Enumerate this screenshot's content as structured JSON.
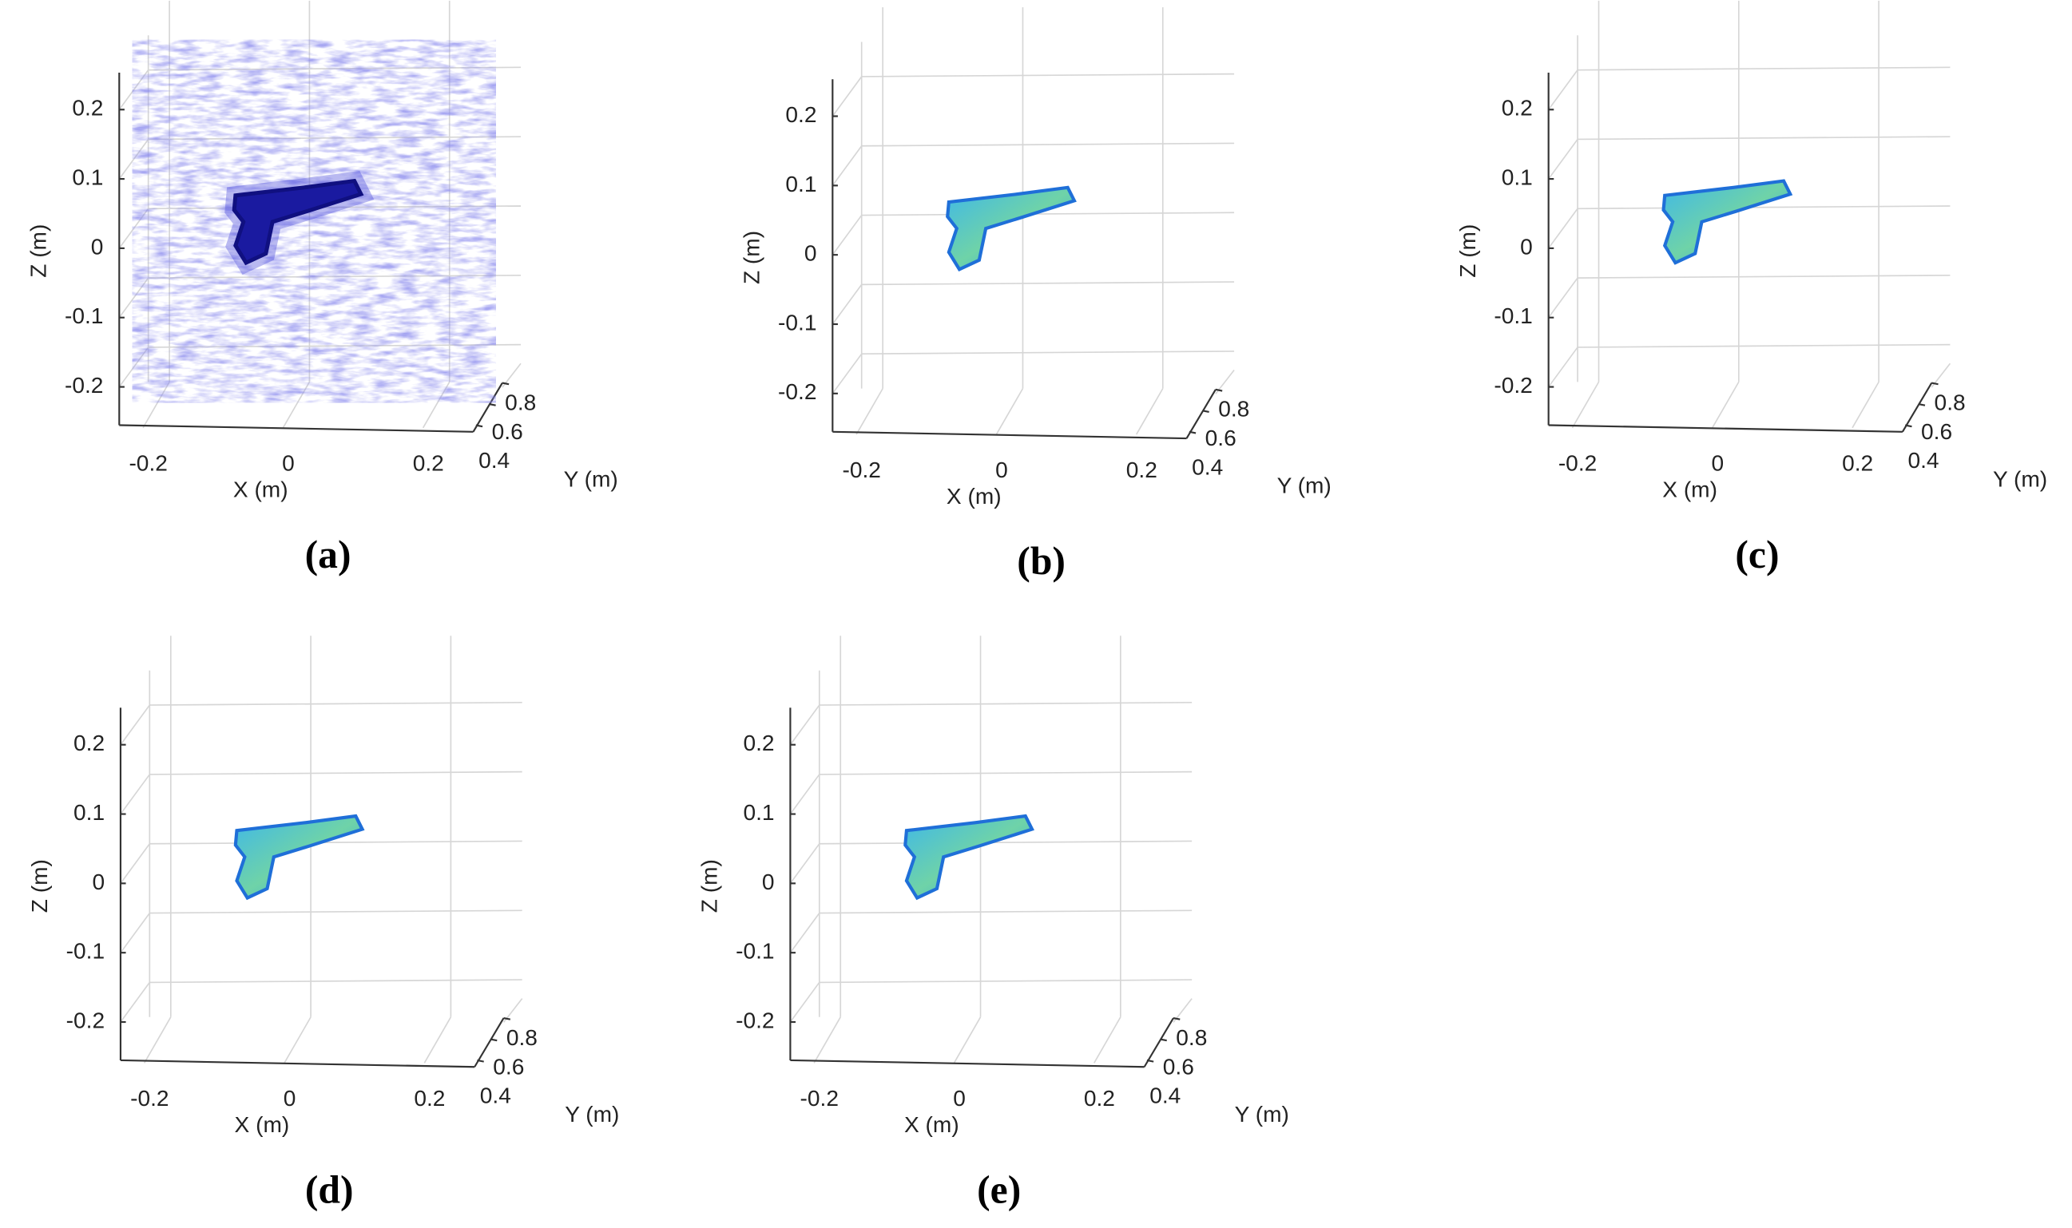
{
  "panels": [
    {
      "caption": "(a)",
      "x_label": "X (m)",
      "y_label": "Y (m)",
      "z_label": "Z (m)",
      "xticks": [
        -0.2,
        0,
        0.2
      ],
      "yticks": [
        0.4,
        0.6,
        0.8
      ],
      "zticks": [
        -0.2,
        -0.1,
        0,
        0.1,
        0.2
      ]
    },
    {
      "caption": "(b)",
      "x_label": "X (m)",
      "y_label": "Y (m)",
      "z_label": "Z (m)",
      "xticks": [
        -0.2,
        0,
        0.2
      ],
      "yticks": [
        0.4,
        0.6,
        0.8
      ],
      "zticks": [
        -0.2,
        -0.1,
        0,
        0.1,
        0.2
      ]
    },
    {
      "caption": "(c)",
      "x_label": "X (m)",
      "y_label": "Y (m)",
      "z_label": "Z (m)",
      "xticks": [
        -0.2,
        0,
        0.2
      ],
      "yticks": [
        0.4,
        0.6,
        0.8
      ],
      "zticks": [
        -0.2,
        -0.1,
        0,
        0.1,
        0.2
      ]
    },
    {
      "caption": "(d)",
      "x_label": "X (m)",
      "y_label": "Y (m)",
      "z_label": "Z (m)",
      "xticks": [
        -0.2,
        0,
        0.2
      ],
      "yticks": [
        0.4,
        0.6,
        0.8
      ],
      "zticks": [
        -0.2,
        -0.1,
        0,
        0.1,
        0.2
      ]
    },
    {
      "caption": "(e)",
      "x_label": "X (m)",
      "y_label": "Y (m)",
      "z_label": "Z (m)",
      "xticks": [
        -0.2,
        0,
        0.2
      ],
      "yticks": [
        0.4,
        0.6,
        0.8
      ],
      "zticks": [
        -0.2,
        -0.1,
        0,
        0.1,
        0.2
      ]
    }
  ]
}
